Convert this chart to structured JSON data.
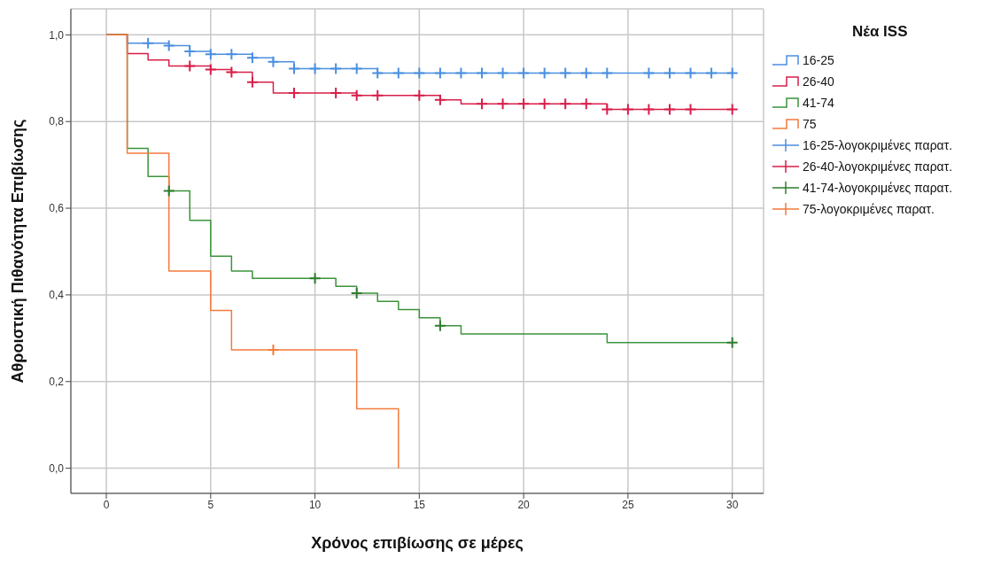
{
  "chart_data": {
    "type": "step",
    "xlabel": "Χρόνος επιβίωσης σε μέρες",
    "ylabel": "Αθροιστική Πιθανότητα Επιβίωσης",
    "legend_title": "Νέα ISS",
    "legend": "right",
    "grid": true,
    "xlim": [
      -1.7,
      31.5
    ],
    "xticks": [
      0,
      5,
      10,
      15,
      20,
      25,
      30
    ],
    "ylim": [
      -0.058,
      1.06
    ],
    "yticks": [
      {
        "value": 0,
        "label": "0,0"
      },
      {
        "value": 0.2,
        "label": "0,2"
      },
      {
        "value": 0.4,
        "label": "0,4"
      },
      {
        "value": 0.6,
        "label": "0,6"
      },
      {
        "value": 0.8,
        "label": "0,8"
      },
      {
        "value": 1.0,
        "label": "1,0"
      }
    ],
    "series": [
      {
        "name": "16-25",
        "color": "#4a8fe0",
        "x": [
          0,
          1,
          3,
          4,
          5,
          7,
          8,
          9,
          13,
          30
        ],
        "values": [
          1,
          0.981,
          0.975,
          0.962,
          0.955,
          0.947,
          0.938,
          0.922,
          0.912,
          0.912
        ]
      },
      {
        "name": "26-40",
        "color": "#d81e4a",
        "x": [
          0,
          1,
          2,
          3,
          5,
          6,
          7,
          8,
          12,
          16,
          17,
          24,
          30
        ],
        "values": [
          1,
          0.957,
          0.942,
          0.928,
          0.92,
          0.914,
          0.891,
          0.866,
          0.86,
          0.85,
          0.841,
          0.828,
          0.828
        ]
      },
      {
        "name": "41-74",
        "color": "#3b943b",
        "x": [
          0,
          1,
          2,
          3,
          4,
          5,
          6,
          7,
          11,
          12,
          13,
          14,
          15,
          16,
          17,
          24,
          30
        ],
        "values": [
          1,
          0.738,
          0.673,
          0.64,
          0.572,
          0.489,
          0.455,
          0.438,
          0.42,
          0.404,
          0.385,
          0.366,
          0.347,
          0.329,
          0.31,
          0.29,
          0.29
        ]
      },
      {
        "name": "75",
        "color": "#f47a3c",
        "x": [
          0,
          1,
          3,
          5,
          6,
          12,
          14
        ],
        "values": [
          1,
          0.727,
          0.455,
          0.364,
          0.273,
          0.137,
          0
        ]
      },
      {
        "name": "16-25-λογοκριμένες παρατ.",
        "type": "scatter",
        "marker": "cross",
        "color": "#4a8fe0",
        "x": [
          2,
          3,
          4,
          5,
          6,
          7,
          8,
          9,
          10,
          11,
          12,
          13,
          14,
          15,
          16,
          17,
          18,
          19,
          20,
          21,
          22,
          23,
          24,
          26,
          27,
          28,
          29,
          30
        ],
        "values": [
          0.981,
          0.975,
          0.962,
          0.955,
          0.955,
          0.947,
          0.938,
          0.922,
          0.922,
          0.922,
          0.922,
          0.912,
          0.912,
          0.912,
          0.912,
          0.912,
          0.912,
          0.912,
          0.912,
          0.912,
          0.912,
          0.912,
          0.912,
          0.912,
          0.912,
          0.912,
          0.912,
          0.912
        ]
      },
      {
        "name": "26-40-λογοκριμένες παρατ.",
        "type": "scatter",
        "marker": "cross",
        "color": "#d81e4a",
        "x": [
          4,
          5,
          6,
          7,
          9,
          11,
          12,
          13,
          15,
          16,
          18,
          19,
          20,
          21,
          22,
          23,
          24,
          25,
          26,
          27,
          28,
          30
        ],
        "values": [
          0.928,
          0.92,
          0.914,
          0.891,
          0.866,
          0.866,
          0.86,
          0.86,
          0.86,
          0.85,
          0.841,
          0.841,
          0.841,
          0.841,
          0.841,
          0.841,
          0.828,
          0.828,
          0.828,
          0.828,
          0.828,
          0.828
        ]
      },
      {
        "name": "41-74-λογοκριμένες παρατ.",
        "type": "scatter",
        "marker": "cross",
        "color": "#2e7d2e",
        "x": [
          3,
          10,
          12,
          16,
          30
        ],
        "values": [
          0.64,
          0.438,
          0.404,
          0.329,
          0.29
        ]
      },
      {
        "name": "75-λογοκριμένες παρατ.",
        "type": "scatter",
        "marker": "cross",
        "color": "#f47a3c",
        "x": [
          8
        ],
        "values": [
          0.273
        ]
      }
    ]
  }
}
